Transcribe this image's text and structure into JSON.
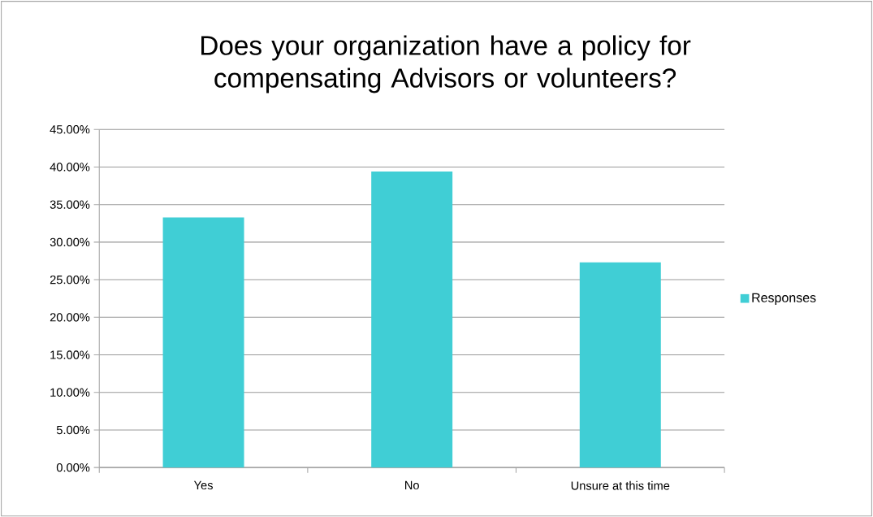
{
  "chart_data": {
    "type": "bar",
    "title": "Does your organization have a policy for compensating Advisors or volunteers?",
    "categories": [
      "Yes",
      "No",
      "Unsure at this time"
    ],
    "series": [
      {
        "name": "Responses",
        "color": "#40ced5",
        "values": [
          33.3,
          39.4,
          27.3
        ]
      }
    ],
    "ylim": [
      0,
      45
    ],
    "yticks": [
      {
        "value": 0,
        "label": "0.00%"
      },
      {
        "value": 5,
        "label": "5.00%"
      },
      {
        "value": 10,
        "label": "10.00%"
      },
      {
        "value": 15,
        "label": "15.00%"
      },
      {
        "value": 20,
        "label": "20.00%"
      },
      {
        "value": 25,
        "label": "25.00%"
      },
      {
        "value": 30,
        "label": "30.00%"
      },
      {
        "value": 35,
        "label": "35.00%"
      },
      {
        "value": 40,
        "label": "40.00%"
      },
      {
        "value": 45,
        "label": "45.00%"
      }
    ],
    "grid": "y",
    "legend": "right"
  }
}
